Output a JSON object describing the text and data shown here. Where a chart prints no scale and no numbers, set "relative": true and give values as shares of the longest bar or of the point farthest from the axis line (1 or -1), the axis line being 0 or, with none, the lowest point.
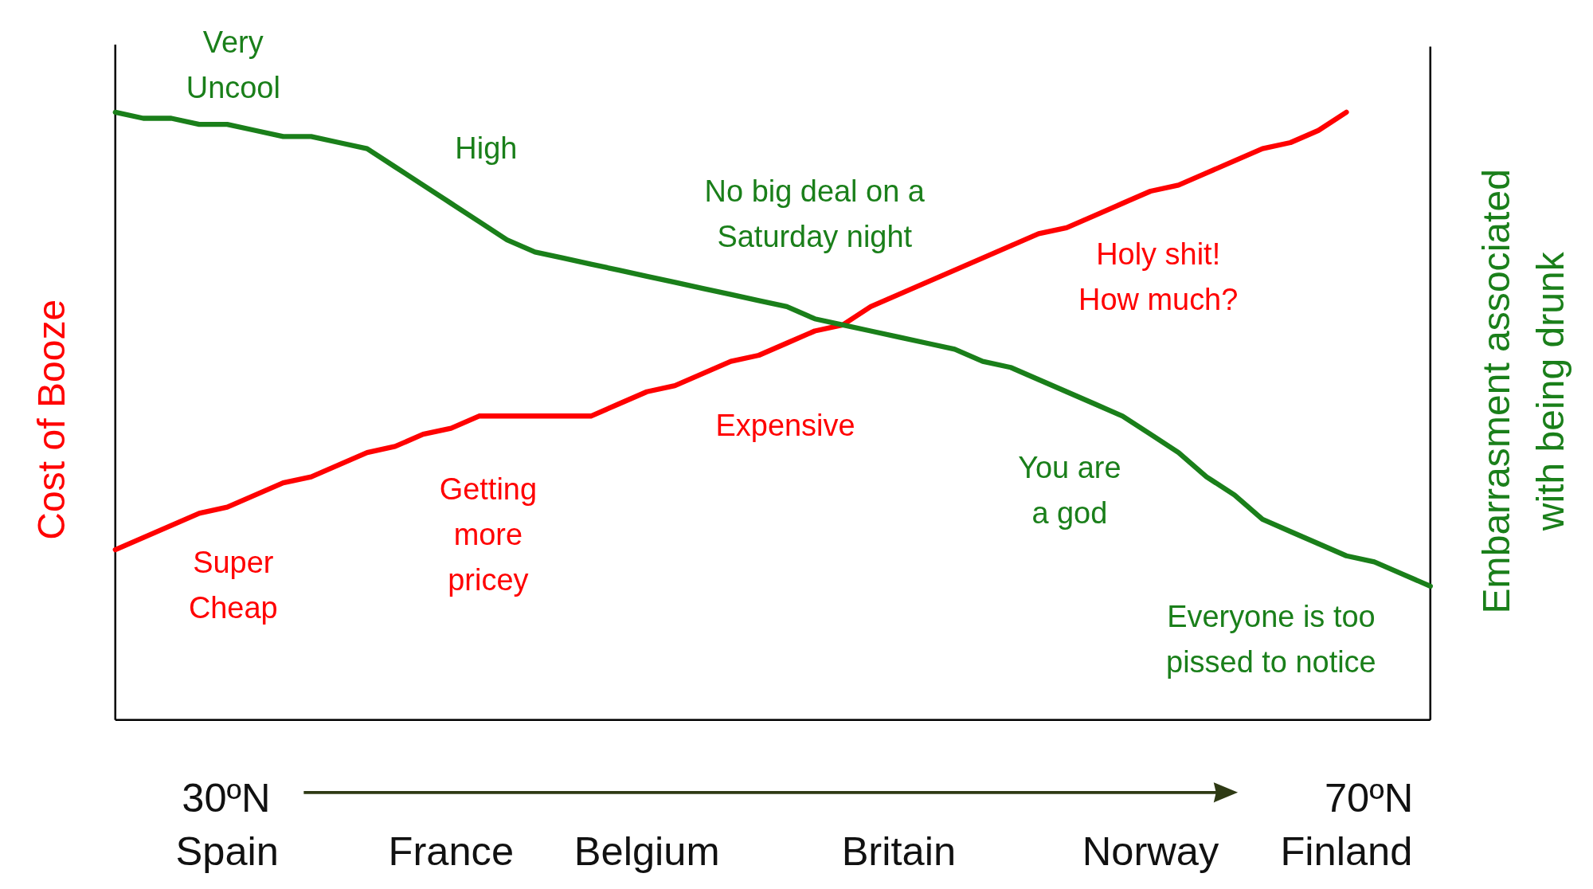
{
  "chart_data": {
    "type": "line",
    "relative": true,
    "ylabel": "Cost of Booze",
    "y2label": "Embarrasment associated\nwith being drunk",
    "categories": [
      null,
      null,
      null,
      null,
      "Spain",
      null,
      null,
      null,
      null,
      null,
      null,
      null,
      "France",
      null,
      null,
      null,
      null,
      null,
      null,
      "Belgium",
      null,
      null,
      null,
      null,
      null,
      null,
      null,
      null,
      "Britain",
      null,
      null,
      null,
      null,
      null,
      null,
      null,
      null,
      "Norway",
      null,
      null,
      null,
      null,
      null,
      null,
      "Finland",
      null,
      null,
      null
    ],
    "series": [
      {
        "color": "#ff0000",
        "values": [
          0.28,
          0.3,
          0.32,
          0.34,
          0.35,
          0.37,
          0.39,
          0.4,
          0.42,
          0.44,
          0.45,
          0.47,
          0.48,
          0.5,
          0.5,
          0.5,
          0.5,
          0.5,
          0.52,
          0.54,
          0.55,
          0.57,
          0.59,
          0.6,
          0.62,
          0.64,
          0.65,
          0.68,
          0.7,
          0.72,
          0.74,
          0.76,
          0.78,
          0.8,
          0.81,
          0.83,
          0.85,
          0.87,
          0.88,
          0.9,
          0.92,
          0.94,
          0.95,
          0.97,
          1,
          null,
          null,
          null
        ]
      },
      {
        "color": "#1a7f1a",
        "axis": "y2",
        "values": [
          1,
          0.99,
          0.99,
          0.98,
          0.98,
          0.97,
          0.96,
          0.96,
          0.95,
          0.94,
          0.91,
          0.88,
          0.85,
          0.82,
          0.79,
          0.77,
          0.76,
          0.75,
          0.74,
          0.73,
          0.72,
          0.71,
          0.7,
          0.69,
          0.68,
          0.66,
          0.65,
          0.64,
          0.63,
          0.62,
          0.61,
          0.59,
          0.58,
          0.56,
          0.54,
          0.52,
          0.5,
          0.47,
          0.44,
          0.4,
          0.37,
          0.33,
          0.31,
          0.29,
          0.27,
          0.26,
          0.24,
          0.22
        ]
      }
    ],
    "annotations": [
      "Very\nUncool",
      "High",
      "No big deal on a\nSaturday night",
      "Holy shit!\nHow much?",
      "Super\nCheap",
      "Getting\nmore\npricey",
      "Expensive",
      "You are\na god",
      "Everyone is too\npissed to notice",
      "30ºN",
      "70ºN"
    ],
    "marker": "none",
    "line_style": "solid"
  }
}
